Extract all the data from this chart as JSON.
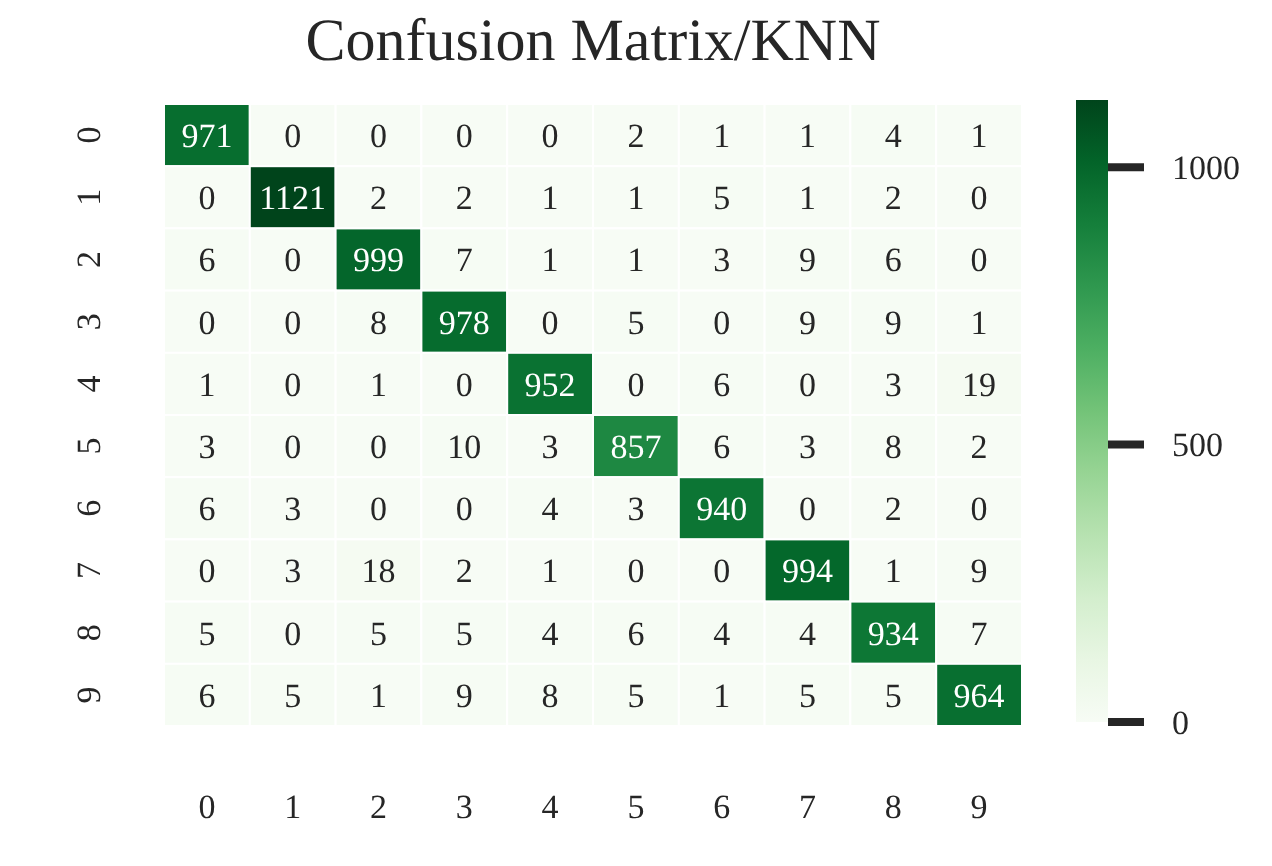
{
  "chart_data": {
    "type": "heatmap",
    "title": "Confusion Matrix/KNN",
    "categories": [
      "0",
      "1",
      "2",
      "3",
      "4",
      "5",
      "6",
      "7",
      "8",
      "9"
    ],
    "y_categories": [
      "0",
      "1",
      "2",
      "3",
      "4",
      "5",
      "6",
      "7",
      "8",
      "9"
    ],
    "cells": [
      [
        971,
        0,
        0,
        0,
        0,
        2,
        1,
        1,
        4,
        1
      ],
      [
        0,
        1121,
        2,
        2,
        1,
        1,
        5,
        1,
        2,
        0
      ],
      [
        6,
        0,
        999,
        7,
        1,
        1,
        3,
        9,
        6,
        0
      ],
      [
        0,
        0,
        8,
        978,
        0,
        5,
        0,
        9,
        9,
        1
      ],
      [
        1,
        0,
        1,
        0,
        952,
        0,
        6,
        0,
        3,
        19
      ],
      [
        3,
        0,
        0,
        10,
        3,
        857,
        6,
        3,
        8,
        2
      ],
      [
        6,
        3,
        0,
        0,
        4,
        3,
        940,
        0,
        2,
        0
      ],
      [
        0,
        3,
        18,
        2,
        1,
        0,
        0,
        994,
        1,
        9
      ],
      [
        5,
        0,
        5,
        5,
        4,
        6,
        4,
        4,
        934,
        7
      ],
      [
        6,
        5,
        1,
        9,
        8,
        5,
        1,
        5,
        5,
        964
      ]
    ],
    "clim": [
      0,
      1121
    ],
    "cticks": [
      0,
      500,
      1000
    ],
    "data_labels": true
  }
}
